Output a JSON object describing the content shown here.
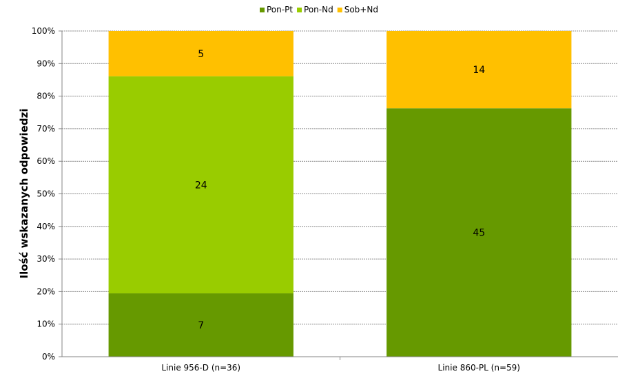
{
  "chart_data": {
    "type": "bar",
    "stacked": "percent",
    "title": "",
    "xlabel": "",
    "ylabel": "Ilość wskazanych odpowiedzi",
    "ylim": [
      0,
      100
    ],
    "y_ticks": [
      "0%",
      "10%",
      "20%",
      "30%",
      "40%",
      "50%",
      "60%",
      "70%",
      "80%",
      "90%",
      "100%"
    ],
    "categories": [
      "Linie 956-D (n=36)",
      "Linie 860-PL (n=59)"
    ],
    "series": [
      {
        "name": "Pon-Pt",
        "color": "#669900",
        "values": [
          7,
          45
        ]
      },
      {
        "name": "Pon-Nd",
        "color": "#99CC00",
        "values": [
          24,
          0
        ]
      },
      {
        "name": "Sob+Nd",
        "color": "#FFC000",
        "values": [
          5,
          14
        ]
      }
    ],
    "grid": true,
    "legend": "top"
  }
}
